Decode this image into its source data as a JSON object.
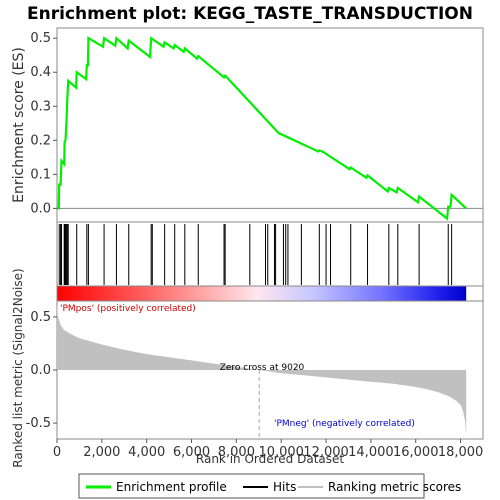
{
  "chart_data": {
    "type": "line",
    "title": "Enrichment plot: KEGG_TASTE_TRANSDUCTION",
    "es_panel": {
      "ylabel": "Enrichment score (ES)",
      "ylim": [
        -0.04,
        0.53
      ],
      "yticks": [
        "0.0",
        "0.1",
        "0.2",
        "0.3",
        "0.4",
        "0.5"
      ],
      "yticks_values": [
        0.0,
        0.1,
        0.2,
        0.3,
        0.4,
        0.5
      ],
      "series": [
        {
          "color": "#00ee00",
          "x": [
            0,
            80,
            100,
            160,
            200,
            320,
            340,
            380,
            420,
            460,
            500,
            850,
            880,
            1300,
            1330,
            1380,
            1400,
            2050,
            2100,
            2600,
            2650,
            3150,
            3200,
            4150,
            4200,
            4750,
            4800,
            5200,
            5250,
            5650,
            5700,
            6250,
            6300,
            7450,
            7500,
            9900,
            10000,
            11650,
            11700,
            11900,
            12000,
            13050,
            13100,
            13800,
            13850,
            14750,
            14800,
            15150,
            15200,
            16100,
            16150,
            17400,
            17450,
            17550,
            17600,
            18250
          ],
          "y": [
            0.0,
            0.0,
            0.07,
            0.07,
            0.14,
            0.13,
            0.195,
            0.2,
            0.25,
            0.32,
            0.375,
            0.355,
            0.4,
            0.38,
            0.42,
            0.42,
            0.5,
            0.475,
            0.5,
            0.478,
            0.5,
            0.47,
            0.493,
            0.445,
            0.5,
            0.475,
            0.488,
            0.47,
            0.48,
            0.46,
            0.47,
            0.44,
            0.447,
            0.385,
            0.39,
            0.22,
            0.218,
            0.167,
            0.17,
            0.165,
            0.16,
            0.115,
            0.12,
            0.09,
            0.097,
            0.05,
            0.06,
            0.047,
            0.06,
            0.018,
            0.035,
            -0.03,
            0.005,
            0.005,
            0.04,
            0.0
          ]
        }
      ]
    },
    "hits": [
      100,
      160,
      200,
      320,
      340,
      380,
      420,
      460,
      500,
      880,
      1330,
      1400,
      2100,
      2650,
      3200,
      4200,
      4250,
      4800,
      5250,
      5700,
      6300,
      7450,
      7500,
      8600,
      9300,
      9400,
      9700,
      9750,
      10100,
      10200,
      10300,
      10900,
      11700,
      12000,
      12200,
      13100,
      13850,
      14800,
      15200,
      16150,
      17450,
      17600
    ],
    "metric_panel": {
      "ylabel": "Ranked list metric (Signal2Noise)",
      "ylim": [
        -0.65,
        0.65
      ],
      "yticks": [
        "0.5",
        "0.0",
        "-0.5"
      ],
      "yticks_values": [
        0.5,
        0.0,
        -0.5
      ],
      "profile_x": [
        0,
        50,
        150,
        300,
        600,
        1000,
        2000,
        3000,
        4000,
        5000,
        6000,
        7000,
        8000,
        9020,
        10000,
        11000,
        12000,
        13000,
        14000,
        15000,
        16000,
        16500,
        17000,
        17500,
        17800,
        18000,
        18100,
        18200,
        18250
      ],
      "profile_y": [
        0.62,
        0.5,
        0.43,
        0.38,
        0.34,
        0.3,
        0.24,
        0.19,
        0.15,
        0.12,
        0.09,
        0.06,
        0.03,
        0.0,
        -0.03,
        -0.05,
        -0.07,
        -0.09,
        -0.11,
        -0.13,
        -0.16,
        -0.18,
        -0.21,
        -0.25,
        -0.29,
        -0.33,
        -0.38,
        -0.48,
        -0.62
      ],
      "zero_cross_label": "Zero cross at 9020",
      "zero_cross": 9020,
      "pos_label": "'PMpos' (positively correlated)",
      "neg_label": "'PMneg' (negatively correlated)"
    },
    "xlabel": "Rank in Ordered Dataset",
    "xlim": [
      0,
      19000
    ],
    "xticks": [
      "0",
      "2,000",
      "4,000",
      "6,000",
      "8,000",
      "10,000",
      "12,000",
      "14,000",
      "16,000",
      "18,000"
    ],
    "xticks_values": [
      0,
      2000,
      4000,
      6000,
      8000,
      10000,
      12000,
      14000,
      16000,
      18000
    ],
    "n_genes": 18250,
    "legend": {
      "placement": "bottom",
      "items": [
        {
          "label": "Enrichment profile",
          "color": "#00ee00"
        },
        {
          "label": "Hits",
          "color": "#000000"
        },
        {
          "label": "Ranking metric scores",
          "color": "#c0c0c0"
        }
      ]
    },
    "colors": {
      "pos": "#ff0000",
      "neg": "#0000ff",
      "pos_text": "#cc0000",
      "neg_text": "#0000cc",
      "metric_fill": "#c0c0c0"
    }
  }
}
